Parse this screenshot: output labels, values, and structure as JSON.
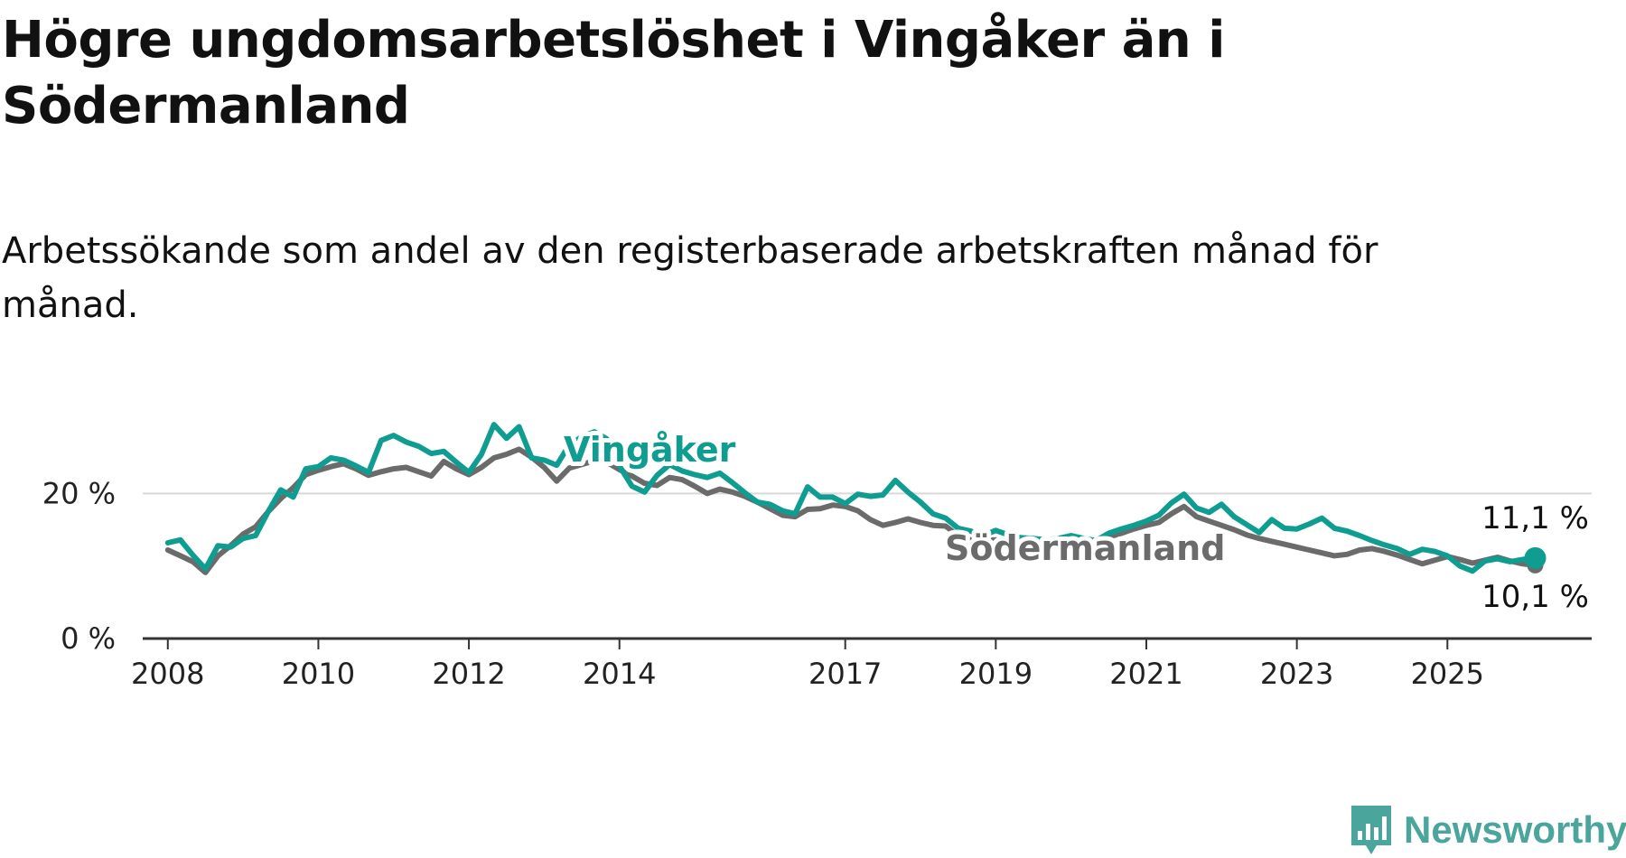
{
  "header": {
    "title": "Högre ungdomsarbetslöshet i Vingåker än i Södermanland",
    "subtitle": "Arbetssökande som andel av den registerbaserade arbetskraften månad för månad."
  },
  "branding": {
    "logo_text": "Newsworthy",
    "logo_icon": "bar-chart-speech-bubble-icon",
    "logo_color": "#4aa69c"
  },
  "chart_data": {
    "type": "line",
    "x_type": "date",
    "ylim": [
      0,
      32
    ],
    "xlim": [
      "2007-09",
      "2026-12"
    ],
    "yticks": [
      {
        "value": 0,
        "label": "0 %"
      },
      {
        "value": 20,
        "label": "20 %"
      }
    ],
    "xticks": [
      "2008",
      "2010",
      "2012",
      "2014",
      "2017",
      "2019",
      "2021",
      "2023",
      "2025"
    ],
    "grid": "horizontal at 20 %",
    "series": [
      {
        "name": "Vingåker",
        "color": "#0e9d90",
        "end_label": "11,1 %",
        "end_marker": true,
        "points": [
          [
            "2008-01",
            13.2
          ],
          [
            "2008-03",
            13.6
          ],
          [
            "2008-05",
            11.5
          ],
          [
            "2008-07",
            9.6
          ],
          [
            "2008-09",
            12.8
          ],
          [
            "2008-11",
            12.6
          ],
          [
            "2009-01",
            13.8
          ],
          [
            "2009-03",
            14.2
          ],
          [
            "2009-05",
            17.5
          ],
          [
            "2009-07",
            20.5
          ],
          [
            "2009-09",
            19.5
          ],
          [
            "2009-11",
            23.4
          ],
          [
            "2010-01",
            23.7
          ],
          [
            "2010-03",
            24.9
          ],
          [
            "2010-05",
            24.6
          ],
          [
            "2010-07",
            23.8
          ],
          [
            "2010-09",
            22.9
          ],
          [
            "2010-11",
            27.3
          ],
          [
            "2011-01",
            28.0
          ],
          [
            "2011-03",
            27.1
          ],
          [
            "2011-05",
            26.5
          ],
          [
            "2011-07",
            25.5
          ],
          [
            "2011-09",
            25.8
          ],
          [
            "2011-11",
            24.3
          ],
          [
            "2012-01",
            22.9
          ],
          [
            "2012-03",
            25.4
          ],
          [
            "2012-05",
            29.5
          ],
          [
            "2012-07",
            27.6
          ],
          [
            "2012-09",
            29.2
          ],
          [
            "2012-11",
            24.9
          ],
          [
            "2013-01",
            24.6
          ],
          [
            "2013-03",
            23.9
          ],
          [
            "2013-05",
            26.7
          ],
          [
            "2013-07",
            27.8
          ],
          [
            "2013-09",
            28.5
          ],
          [
            "2013-11",
            27.5
          ],
          [
            "2014-01",
            23.8
          ],
          [
            "2014-03",
            21.0
          ],
          [
            "2014-05",
            20.2
          ],
          [
            "2014-07",
            22.5
          ],
          [
            "2014-09",
            24.0
          ],
          [
            "2014-11",
            23.1
          ],
          [
            "2015-01",
            22.6
          ],
          [
            "2015-03",
            22.2
          ],
          [
            "2015-05",
            22.8
          ],
          [
            "2015-07",
            21.5
          ],
          [
            "2015-09",
            20.1
          ],
          [
            "2015-11",
            18.8
          ],
          [
            "2016-01",
            18.5
          ],
          [
            "2016-03",
            17.6
          ],
          [
            "2016-05",
            17.2
          ],
          [
            "2016-07",
            20.9
          ],
          [
            "2016-09",
            19.5
          ],
          [
            "2016-11",
            19.5
          ],
          [
            "2017-01",
            18.6
          ],
          [
            "2017-03",
            19.9
          ],
          [
            "2017-05",
            19.6
          ],
          [
            "2017-07",
            19.8
          ],
          [
            "2017-09",
            21.8
          ],
          [
            "2017-11",
            20.2
          ],
          [
            "2018-01",
            18.8
          ],
          [
            "2018-03",
            17.2
          ],
          [
            "2018-05",
            16.6
          ],
          [
            "2018-07",
            15.2
          ],
          [
            "2018-09",
            14.8
          ],
          [
            "2018-11",
            14.2
          ],
          [
            "2019-01",
            14.9
          ],
          [
            "2019-03",
            14.3
          ],
          [
            "2019-05",
            13.9
          ],
          [
            "2019-07",
            13.8
          ],
          [
            "2019-09",
            13.6
          ],
          [
            "2019-11",
            13.8
          ],
          [
            "2020-01",
            14.2
          ],
          [
            "2020-03",
            13.8
          ],
          [
            "2020-05",
            13.5
          ],
          [
            "2020-07",
            14.5
          ],
          [
            "2020-09",
            15.1
          ],
          [
            "2020-11",
            15.6
          ],
          [
            "2021-01",
            16.2
          ],
          [
            "2021-03",
            17.0
          ],
          [
            "2021-05",
            18.7
          ],
          [
            "2021-07",
            19.9
          ],
          [
            "2021-09",
            18.0
          ],
          [
            "2021-11",
            17.4
          ],
          [
            "2022-01",
            18.5
          ],
          [
            "2022-03",
            16.8
          ],
          [
            "2022-05",
            15.7
          ],
          [
            "2022-07",
            14.6
          ],
          [
            "2022-09",
            16.4
          ],
          [
            "2022-11",
            15.2
          ],
          [
            "2023-01",
            15.1
          ],
          [
            "2023-03",
            15.8
          ],
          [
            "2023-05",
            16.6
          ],
          [
            "2023-07",
            15.2
          ],
          [
            "2023-09",
            14.8
          ],
          [
            "2023-11",
            14.2
          ],
          [
            "2024-01",
            13.5
          ],
          [
            "2024-03",
            12.9
          ],
          [
            "2024-05",
            12.4
          ],
          [
            "2024-07",
            11.6
          ],
          [
            "2024-09",
            12.3
          ],
          [
            "2024-11",
            12.0
          ],
          [
            "2025-01",
            11.4
          ],
          [
            "2025-03",
            10.0
          ],
          [
            "2025-05",
            9.3
          ],
          [
            "2025-07",
            10.7
          ],
          [
            "2025-09",
            11.0
          ],
          [
            "2025-11",
            10.6
          ],
          [
            "2026-01",
            10.9
          ],
          [
            "2026-03",
            11.1
          ]
        ]
      },
      {
        "name": "Södermanland",
        "color": "#6b6b6b",
        "end_label": "10,1 %",
        "end_marker": true,
        "points": [
          [
            "2008-01",
            12.2
          ],
          [
            "2008-03",
            11.4
          ],
          [
            "2008-05",
            10.6
          ],
          [
            "2008-07",
            9.1
          ],
          [
            "2008-09",
            11.4
          ],
          [
            "2008-11",
            12.8
          ],
          [
            "2009-01",
            14.4
          ],
          [
            "2009-03",
            15.4
          ],
          [
            "2009-05",
            17.5
          ],
          [
            "2009-07",
            19.3
          ],
          [
            "2009-09",
            20.8
          ],
          [
            "2009-11",
            22.6
          ],
          [
            "2010-01",
            23.2
          ],
          [
            "2010-03",
            23.7
          ],
          [
            "2010-05",
            24.1
          ],
          [
            "2010-07",
            23.4
          ],
          [
            "2010-09",
            22.5
          ],
          [
            "2010-11",
            23.0
          ],
          [
            "2011-01",
            23.4
          ],
          [
            "2011-03",
            23.6
          ],
          [
            "2011-05",
            23.0
          ],
          [
            "2011-07",
            22.4
          ],
          [
            "2011-09",
            24.4
          ],
          [
            "2011-11",
            23.4
          ],
          [
            "2012-01",
            22.6
          ],
          [
            "2012-03",
            23.6
          ],
          [
            "2012-05",
            24.9
          ],
          [
            "2012-07",
            25.4
          ],
          [
            "2012-09",
            26.1
          ],
          [
            "2012-11",
            25.0
          ],
          [
            "2013-01",
            23.6
          ],
          [
            "2013-03",
            21.7
          ],
          [
            "2013-05",
            23.5
          ],
          [
            "2013-07",
            24.0
          ],
          [
            "2013-09",
            24.5
          ],
          [
            "2013-11",
            24.3
          ],
          [
            "2014-01",
            23.3
          ],
          [
            "2014-03",
            22.4
          ],
          [
            "2014-05",
            21.4
          ],
          [
            "2014-07",
            21.1
          ],
          [
            "2014-09",
            22.2
          ],
          [
            "2014-11",
            21.9
          ],
          [
            "2015-01",
            21.0
          ],
          [
            "2015-03",
            20.0
          ],
          [
            "2015-05",
            20.6
          ],
          [
            "2015-07",
            20.2
          ],
          [
            "2015-09",
            19.6
          ],
          [
            "2015-11",
            18.8
          ],
          [
            "2016-01",
            17.9
          ],
          [
            "2016-03",
            17.0
          ],
          [
            "2016-05",
            16.8
          ],
          [
            "2016-07",
            17.8
          ],
          [
            "2016-09",
            17.9
          ],
          [
            "2016-11",
            18.4
          ],
          [
            "2017-01",
            18.2
          ],
          [
            "2017-03",
            17.6
          ],
          [
            "2017-05",
            16.4
          ],
          [
            "2017-07",
            15.6
          ],
          [
            "2017-09",
            16.0
          ],
          [
            "2017-11",
            16.5
          ],
          [
            "2018-01",
            16.0
          ],
          [
            "2018-03",
            15.6
          ],
          [
            "2018-05",
            15.5
          ],
          [
            "2018-07",
            14.2
          ],
          [
            "2018-09",
            13.6
          ],
          [
            "2018-11",
            13.5
          ],
          [
            "2019-01",
            13.6
          ],
          [
            "2019-03",
            13.3
          ],
          [
            "2019-05",
            13.1
          ],
          [
            "2019-07",
            12.9
          ],
          [
            "2019-09",
            12.7
          ],
          [
            "2019-11",
            13.0
          ],
          [
            "2020-01",
            13.3
          ],
          [
            "2020-03",
            13.2
          ],
          [
            "2020-05",
            13.4
          ],
          [
            "2020-07",
            14.0
          ],
          [
            "2020-09",
            14.5
          ],
          [
            "2020-11",
            15.1
          ],
          [
            "2021-01",
            15.6
          ],
          [
            "2021-03",
            16.0
          ],
          [
            "2021-05",
            17.2
          ],
          [
            "2021-07",
            18.2
          ],
          [
            "2021-09",
            16.8
          ],
          [
            "2021-11",
            16.2
          ],
          [
            "2022-01",
            15.6
          ],
          [
            "2022-03",
            15.0
          ],
          [
            "2022-05",
            14.3
          ],
          [
            "2022-07",
            13.8
          ],
          [
            "2022-09",
            13.4
          ],
          [
            "2022-11",
            13.0
          ],
          [
            "2023-01",
            12.6
          ],
          [
            "2023-03",
            12.2
          ],
          [
            "2023-05",
            11.8
          ],
          [
            "2023-07",
            11.4
          ],
          [
            "2023-09",
            11.6
          ],
          [
            "2023-11",
            12.2
          ],
          [
            "2024-01",
            12.4
          ],
          [
            "2024-03",
            12.0
          ],
          [
            "2024-05",
            11.5
          ],
          [
            "2024-07",
            10.9
          ],
          [
            "2024-09",
            10.3
          ],
          [
            "2024-11",
            10.8
          ],
          [
            "2025-01",
            11.3
          ],
          [
            "2025-03",
            10.9
          ],
          [
            "2025-05",
            10.4
          ],
          [
            "2025-07",
            10.8
          ],
          [
            "2025-09",
            11.2
          ],
          [
            "2025-11",
            10.7
          ],
          [
            "2026-01",
            10.3
          ],
          [
            "2026-03",
            10.1
          ]
        ]
      }
    ]
  }
}
